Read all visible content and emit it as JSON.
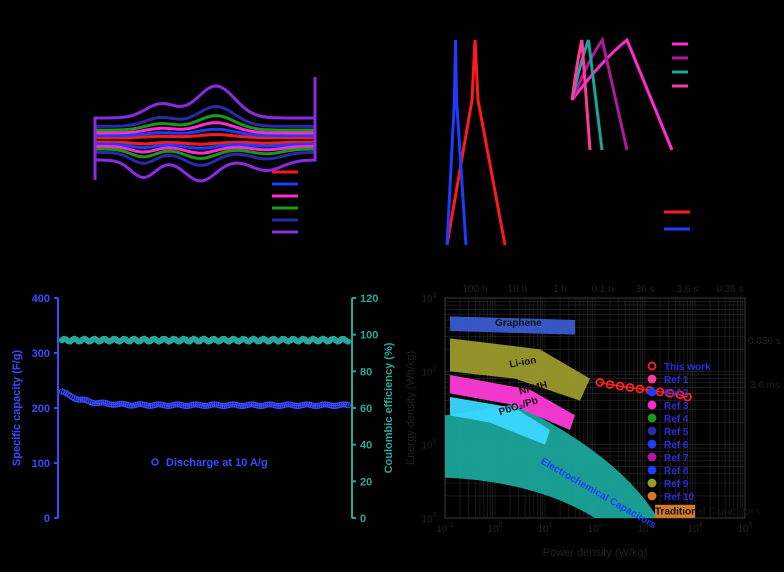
{
  "colors": {
    "red": "#ff1a1a",
    "blue": "#1e3cff",
    "magenta": "#ff2bd0",
    "green": "#1a9a1a",
    "navy": "#2a2aa8",
    "purple": "#8a2be2",
    "teal": "#1aa59a",
    "darkmagenta": "#b01a9a",
    "hotpink": "#ff3a9a",
    "discharge_blue": "#3a4bff",
    "ce_teal": "#2aa79b",
    "li_ion": "#9a9a2a",
    "nimh": "#ff3ad7",
    "pbo2": "#3ad7ff",
    "ec_region": "#1aa59a",
    "this_work": "#ff2020",
    "trad_cap": "#d07a2a",
    "graphene": "#3a5bd0"
  },
  "chart_data": [
    {
      "type": "line",
      "panel": "cv",
      "series": [
        {
          "color_key": "red",
          "amplitude": 0.1
        },
        {
          "color_key": "blue",
          "amplitude": 0.2
        },
        {
          "color_key": "magenta",
          "amplitude": 0.32
        },
        {
          "color_key": "green",
          "amplitude": 0.45
        },
        {
          "color_key": "navy",
          "amplitude": 0.62
        },
        {
          "color_key": "purple",
          "amplitude": 1.0
        }
      ]
    },
    {
      "type": "line",
      "panel": "gcd_pair",
      "series": [
        {
          "color_key": "red",
          "duration": 1.0
        },
        {
          "color_key": "blue",
          "duration": 0.35
        }
      ]
    },
    {
      "type": "line",
      "panel": "gcd_multi",
      "series": [
        {
          "color_key": "magenta",
          "duration": 1.0
        },
        {
          "color_key": "darkmagenta",
          "duration": 0.55
        },
        {
          "color_key": "teal",
          "duration": 0.3
        },
        {
          "color_key": "hotpink",
          "duration": 0.18
        }
      ]
    },
    {
      "type": "scatter",
      "panel": "cycling",
      "y_left_ticks": [
        "400",
        "300",
        "200",
        "100",
        "0"
      ],
      "y_right_ticks": [
        "120",
        "100",
        "80",
        "60",
        "40",
        "20",
        "0"
      ],
      "y_left_range": [
        0,
        400
      ],
      "y_right_range": [
        0,
        120
      ],
      "y_left_label": "Specific capacity (F/g)",
      "y_right_label": "Coulombic efficiency (%)",
      "series": [
        {
          "name": "Discharge at 10 A/g",
          "color_key": "discharge_blue",
          "initial": 230,
          "plateau": 205,
          "points": 140
        },
        {
          "color_key": "ce_teal",
          "value": 97,
          "points": 140
        }
      ],
      "legend_label": "Discharge at 10 A/g"
    },
    {
      "type": "scatter",
      "panel": "ragone",
      "x_range_exp": [
        -1,
        5
      ],
      "y_range_exp": [
        0,
        3
      ],
      "x_tick_labels": [
        "10",
        "10",
        "10",
        "10",
        "10",
        "10",
        "10"
      ],
      "x_tick_exps": [
        "-1",
        "0",
        "1",
        "2",
        "3",
        "4",
        "5"
      ],
      "y_tick_labels": [
        "10",
        "10",
        "10",
        "10"
      ],
      "y_tick_exps": [
        "0",
        "1",
        "2",
        "3"
      ],
      "top_axis_labels": [
        "100 h",
        "10 h",
        "1 h",
        "0.1 h",
        "36 s",
        "3.6 s",
        "0.36 s"
      ],
      "xlabel": "Power density (W/kg)",
      "ylabel": "Energy density (Wh/kg)",
      "right_labels": [
        "0.036 s",
        "3.6 ms"
      ],
      "regions": [
        {
          "name": "Graphene",
          "color_key": "graphene"
        },
        {
          "name": "Li-ion",
          "color_key": "li_ion"
        },
        {
          "name": "Ni-MH",
          "color_key": "nimh"
        },
        {
          "name": "PbO₂/Pb",
          "color_key": "pbo2"
        },
        {
          "name": "Electrochemical Capacitors",
          "color_key": "ec_region"
        },
        {
          "name": "Traditional Capacitors",
          "color_key": "trad_cap"
        }
      ],
      "this_work": {
        "x_exp": [
          2.1,
          2.3,
          2.5,
          2.7,
          2.9,
          3.1,
          3.3,
          3.5,
          3.7,
          3.85
        ],
        "y_exp": [
          1.85,
          1.82,
          1.8,
          1.78,
          1.76,
          1.74,
          1.72,
          1.7,
          1.68,
          1.65
        ]
      },
      "legend": [
        {
          "name": "This work",
          "color_key": "this_work"
        },
        {
          "name": "Ref 1",
          "color_key": "hotpink"
        },
        {
          "name": "Ref 2",
          "color_key": "blue"
        },
        {
          "name": "Ref 3",
          "color_key": "magenta"
        },
        {
          "name": "Ref 4",
          "color_key": "green"
        },
        {
          "name": "Ref 5",
          "color_key": "navy"
        },
        {
          "name": "Ref 6",
          "color_key": "blue"
        },
        {
          "name": "Ref 7",
          "color_key": "darkmagenta"
        },
        {
          "name": "Ref 8",
          "color_key": "blue"
        },
        {
          "name": "Ref 9",
          "color_key": "li_ion"
        },
        {
          "name": "Ref 10",
          "color_key": "trad_cap"
        }
      ]
    }
  ]
}
